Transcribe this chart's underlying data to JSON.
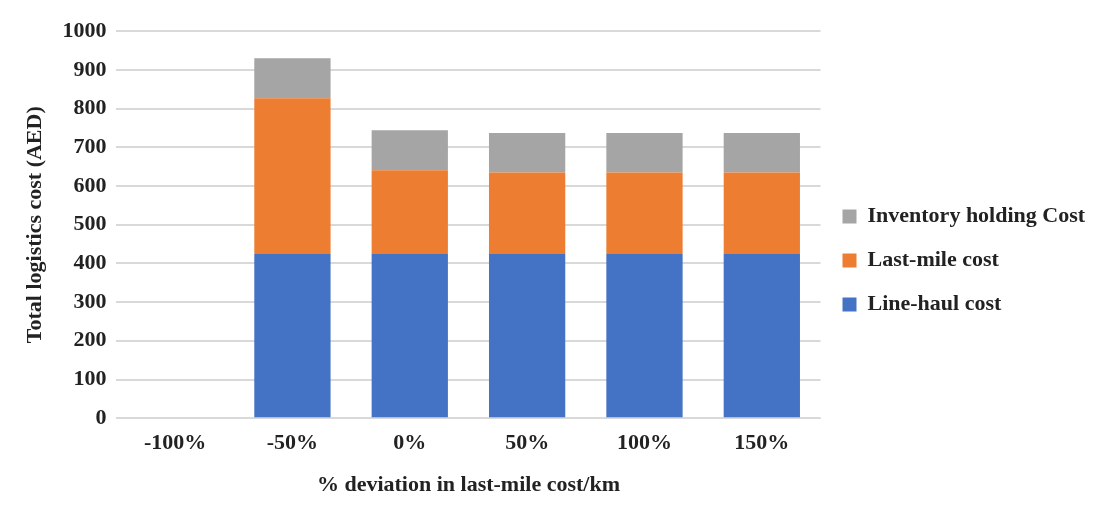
{
  "chart_data": {
    "type": "bar",
    "stacked": true,
    "xlabel": "% deviation in last-mile cost/km",
    "ylabel": "Total logistics cost (AED)",
    "categories": [
      "-100%",
      "-50%",
      "0%",
      "50%",
      "100%",
      "150%"
    ],
    "series": [
      {
        "name": "Line-haul cost",
        "color": "#4472c4",
        "values": [
          null,
          424,
          424,
          424,
          424,
          424
        ]
      },
      {
        "name": "Last-mile cost",
        "color": "#ed7d31",
        "values": [
          null,
          403,
          217,
          211,
          211,
          211
        ]
      },
      {
        "name": "Inventory holding Cost",
        "color": "#a5a5a5",
        "values": [
          null,
          103,
          103,
          102,
          102,
          102
        ]
      }
    ],
    "ylim": [
      0,
      1000
    ],
    "yticks": [
      0,
      100,
      200,
      300,
      400,
      500,
      600,
      700,
      800,
      900,
      1000
    ],
    "grid": "y",
    "legend": "right"
  }
}
